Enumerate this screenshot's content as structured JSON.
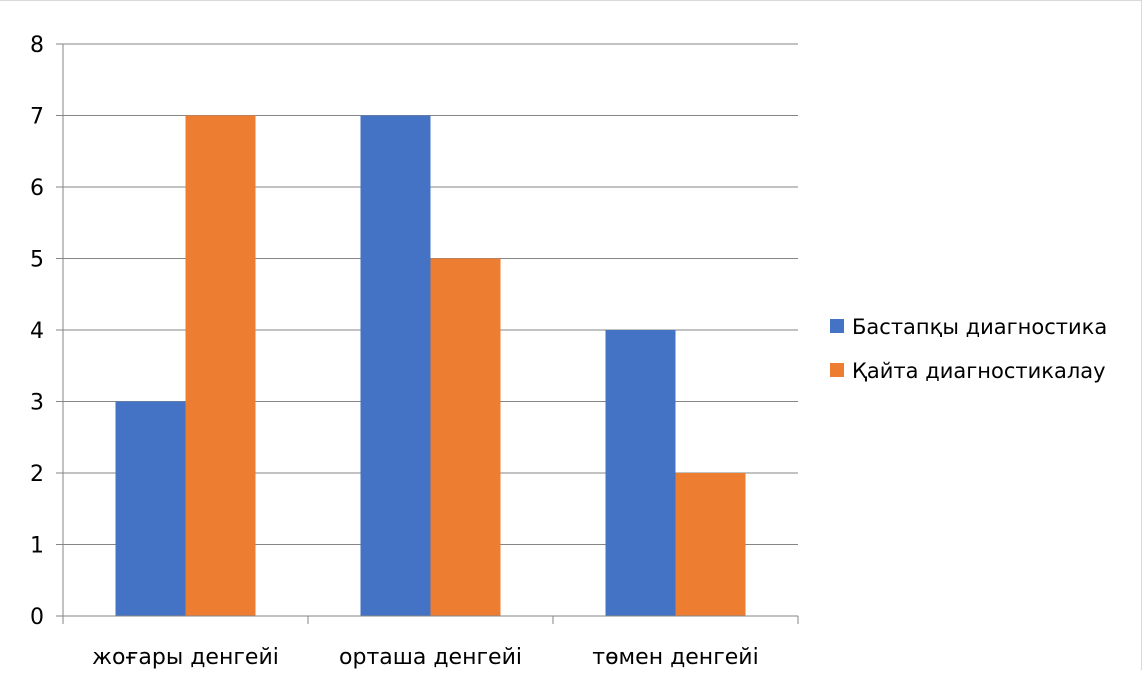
{
  "chart_data": {
    "type": "bar",
    "categories": [
      "жоғары денгейі",
      "орташа денгейі",
      "төмен денгейі"
    ],
    "series": [
      {
        "name": "Бастапқы диагностика",
        "values": [
          3,
          7,
          4
        ],
        "color": "#4472c4"
      },
      {
        "name": "Қайта диагностикалау",
        "values": [
          7,
          5,
          2
        ],
        "color": "#ed7d31"
      }
    ],
    "y_ticks": [
      "0",
      "1",
      "2",
      "3",
      "4",
      "5",
      "6",
      "7",
      "8"
    ],
    "ylim": [
      0,
      8
    ],
    "grid": true,
    "legend_position": "right",
    "gridline_color": "#868686"
  }
}
